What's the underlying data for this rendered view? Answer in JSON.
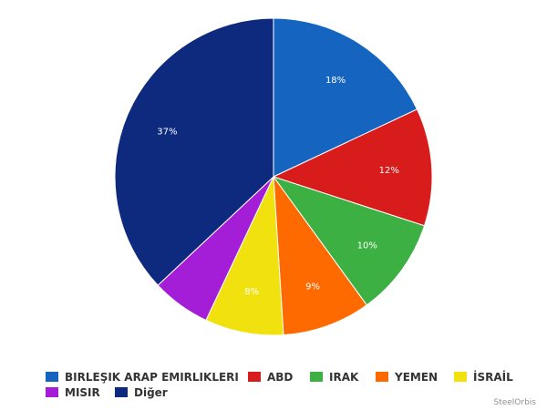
{
  "chart_data": {
    "type": "pie",
    "title": "",
    "start_angle_deg": 0,
    "direction": "clockwise",
    "slices": [
      {
        "label": "BIRLEŞIK ARAP EMIRLIKLERI",
        "value": 18,
        "value_label": "18%",
        "color": "#1565c0",
        "show_label": true
      },
      {
        "label": "ABD",
        "value": 12,
        "value_label": "12%",
        "color": "#d81b1b",
        "show_label": true
      },
      {
        "label": "IRAK",
        "value": 10,
        "value_label": "10%",
        "color": "#3cb043",
        "show_label": true
      },
      {
        "label": "YEMEN",
        "value": 9,
        "value_label": "9%",
        "color": "#ff6a00",
        "show_label": true
      },
      {
        "label": "İSRAİL",
        "value": 8,
        "value_label": "8%",
        "color": "#f0e10f",
        "show_label": true
      },
      {
        "label": "MISIR",
        "value": 6,
        "value_label": "",
        "color": "#a31ed6",
        "show_label": false
      },
      {
        "label": "Diğer",
        "value": 37,
        "value_label": "37%",
        "color": "#0d2a7e",
        "show_label": true
      }
    ],
    "legend_position": "bottom"
  },
  "watermark": "SteelOrbis"
}
